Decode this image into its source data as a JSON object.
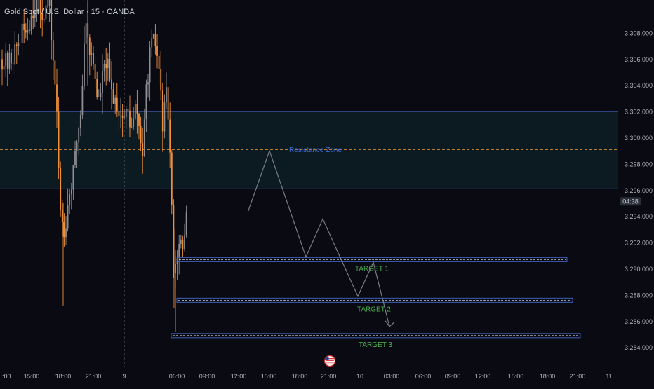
{
  "symbol_title": "Gold Spot / U.S. Dollar · 15 · OANDA",
  "countdown": "04:38",
  "colors": {
    "background": "#0a0b12",
    "candle_up": "#8e8e93",
    "candle_down": "#f2903a",
    "zone_border": "#3f5fb8",
    "zone_fill": "#0c1a22",
    "mid_line": "#d98a2b",
    "target_text": "#4caf50",
    "resistance_text": "#3f6cd8",
    "projection": "#7a7d85",
    "axis_text": "#b2b5be"
  },
  "chart_data": {
    "type": "candlestick",
    "y_ticks": [
      "3,308.000",
      "3,306.000",
      "3,304.000",
      "3,302.000",
      "3,300.000",
      "3,298.000",
      "3,296.000",
      "3,294.000",
      "3,292.000",
      "3,290.000",
      "3,288.000",
      "3,286.000",
      "3,284.000"
    ],
    "ylim": [
      3283.5,
      3309.8
    ],
    "x_ticks": [
      "15:00",
      "18:00",
      "21:00",
      "9",
      "06:00",
      "09:00",
      "12:00",
      "15:00",
      "18:00",
      "21:00",
      "10",
      "03:00",
      "06:00",
      "09:00",
      "12:00",
      "15:00",
      "18:00",
      "21:00",
      "11"
    ],
    "current_price_label": "04:38",
    "resistance_zone": {
      "label": "Resistance Zone",
      "top": 3302.0,
      "bottom": 3296.1,
      "mid": 3299.1
    },
    "targets": [
      {
        "label": "TARGET 1",
        "price": 3290.7
      },
      {
        "label": "TARGET 2",
        "price": 3287.6
      },
      {
        "label": "TARGET 3",
        "price": 3284.9
      }
    ],
    "projection_path": [
      3294.3,
      3299.0,
      3290.9,
      3293.8,
      3287.9,
      3290.5,
      3285.6
    ]
  }
}
